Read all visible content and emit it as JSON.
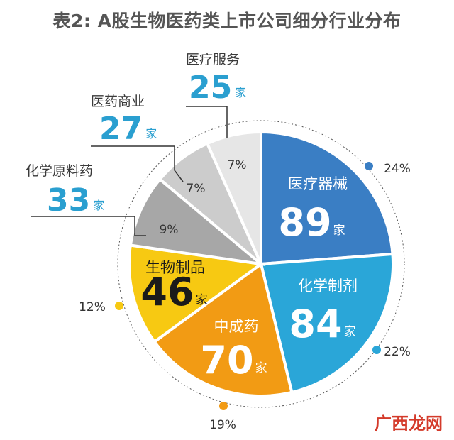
{
  "title": "表2: A股生物医药类上市公司细分行业分布",
  "unit": "家",
  "colors": {
    "segments": [
      "#3a7ec4",
      "#2aa6d8",
      "#f29b14",
      "#f7c912",
      "#a7a7a7",
      "#cccccc",
      "#e6e6e6"
    ],
    "accent_text": "#2a9fd0"
  },
  "chart_data": {
    "type": "pie",
    "title": "表2: A股生物医药类上市公司细分行业分布",
    "slices": [
      {
        "name": "医疗器械",
        "count": 89,
        "percent": "24%"
      },
      {
        "name": "化学制剂",
        "count": 84,
        "percent": "22%"
      },
      {
        "name": "中成药",
        "count": 70,
        "percent": "19%"
      },
      {
        "name": "生物制品",
        "count": 46,
        "percent": "12%"
      },
      {
        "name": "化学原料药",
        "count": 33,
        "percent": "9%"
      },
      {
        "name": "医药商业",
        "count": 27,
        "percent": "7%"
      },
      {
        "name": "医疗服务",
        "count": 25,
        "percent": "7%"
      }
    ]
  },
  "watermark": "广西龙网"
}
